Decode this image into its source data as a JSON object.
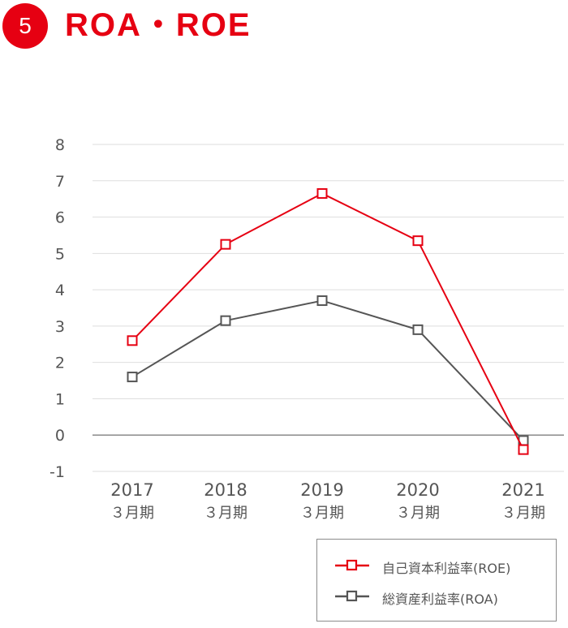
{
  "header": {
    "number": "5",
    "title": "ROA・ROE"
  },
  "chart_data": {
    "type": "line",
    "categories": [
      "2017",
      "2018",
      "2019",
      "2020",
      "2021"
    ],
    "category_sublabels": [
      "３月期",
      "３月期",
      "３月期",
      "３月期",
      "３月期"
    ],
    "ylim": [
      -1,
      8
    ],
    "yticks": [
      "8",
      "7",
      "6",
      "5",
      "4",
      "3",
      "2",
      "1",
      "0",
      "-1"
    ],
    "grid": true,
    "legend_position": "bottom-right",
    "series": [
      {
        "name": "自己資本利益率(ROE)",
        "color": "#e60012",
        "marker": "square-open",
        "values": [
          2.6,
          5.25,
          6.65,
          5.35,
          -0.4
        ]
      },
      {
        "name": "総資産利益率(ROA)",
        "color": "#555555",
        "marker": "square-open",
        "values": [
          1.6,
          3.15,
          3.7,
          2.9,
          -0.15
        ]
      }
    ]
  }
}
